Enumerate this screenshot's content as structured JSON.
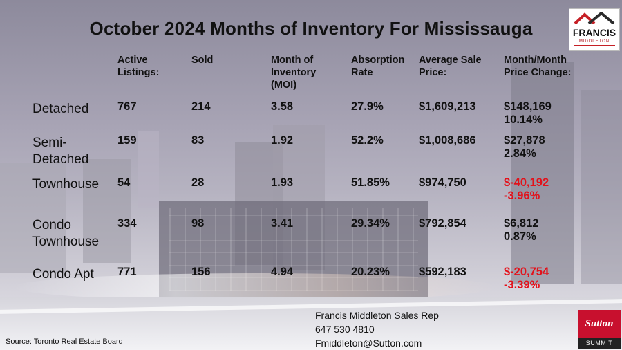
{
  "title": "October 2024 Months of Inventory For Mississauga",
  "logo": {
    "name": "FRANCIS",
    "sub": "MIDDLETON",
    "colors": {
      "roof_red": "#c62026",
      "roof_dark": "#2b2b2b"
    }
  },
  "headers": [
    [
      "Active",
      "Listings:"
    ],
    [
      "Sold"
    ],
    [
      "Month of",
      "Inventory",
      "(MOI)"
    ],
    [
      "Absorption",
      "Rate"
    ],
    [
      "Average Sale",
      "Price:"
    ],
    [
      "Month/Month",
      "Price Change:"
    ]
  ],
  "rows": [
    {
      "label": [
        "Detached"
      ],
      "active": "767",
      "sold": "214",
      "moi": "3.58",
      "absorption": "27.9%",
      "avg_price": "$1,609,213",
      "change_amount": "$148,169",
      "change_pct": "10.14%",
      "negative": false
    },
    {
      "label": [
        "Semi-",
        "Detached"
      ],
      "active": "159",
      "sold": "83",
      "moi": "1.92",
      "absorption": "52.2%",
      "avg_price": "$1,008,686",
      "change_amount": "$27,878",
      "change_pct": "2.84%",
      "negative": false
    },
    {
      "label": [
        "Townhouse"
      ],
      "active": "54",
      "sold": "28",
      "moi": "1.93",
      "absorption": "51.85%",
      "avg_price": "$974,750",
      "change_amount": "$-40,192",
      "change_pct": "-3.96%",
      "negative": true
    },
    {
      "label": [
        "Condo",
        "Townhouse"
      ],
      "active": "334",
      "sold": "98",
      "moi": "3.41",
      "absorption": "29.34%",
      "avg_price": "$792,854",
      "change_amount": "$6,812",
      "change_pct": "0.87%",
      "negative": false
    },
    {
      "label": [
        "Condo Apt"
      ],
      "active": "771",
      "sold": "156",
      "moi": "4.94",
      "absorption": "20.23%",
      "avg_price": "$592,183",
      "change_amount": "$-20,754",
      "change_pct": "-3.39%",
      "negative": true
    }
  ],
  "contact": {
    "name": "Francis Middleton Sales Rep",
    "phone": "647 530 4810",
    "email": "Fmiddleton@Sutton.com"
  },
  "source": "Source: Toronto Real Estate Board",
  "brand": {
    "name": "Sutton",
    "sub": "SUMMIT",
    "color": "#c8102e"
  },
  "colors": {
    "negative": "#e3111a",
    "text": "#111111"
  }
}
